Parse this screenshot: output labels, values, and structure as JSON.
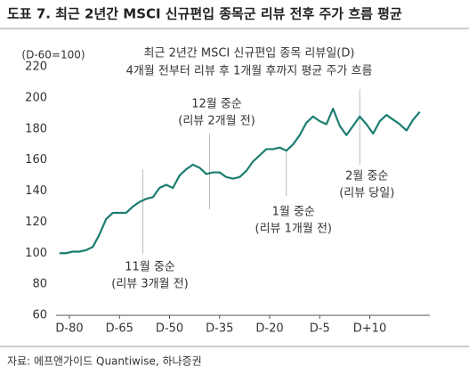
{
  "header": "도표 7. 최근 2년간 MSCI 신규편입 종목군 리뷰 전후 주가 흐름 평균",
  "source": "자료: 에프앤가이드 Quantiwise, 하나증권",
  "chart_data": {
    "type": "line",
    "title": [
      "최근 2년간 MSCI 신규편입 종목 리뷰일(D)",
      "4개월 전부터 리뷰 후 1개월 후까지 평균 주가 흐름"
    ],
    "ylabel": "(D-60=100)",
    "x": [
      -83,
      -81,
      -79,
      -77,
      -75,
      -73,
      -71,
      -69,
      -67,
      -65,
      -63,
      -61,
      -59,
      -57,
      -55,
      -53,
      -51,
      -49,
      -47,
      -45,
      -43,
      -41,
      -39,
      -37,
      -35,
      -33,
      -31,
      -29,
      -27,
      -25,
      -23,
      -21,
      -19,
      -17,
      -15,
      -13,
      -11,
      -9,
      -7,
      -5,
      -3,
      -1,
      1,
      3,
      5,
      7,
      9,
      11,
      13,
      15,
      17,
      19,
      21,
      23,
      25
    ],
    "series": [
      {
        "name": "평균 주가",
        "color": "#1b7d70",
        "values": [
          100,
          100,
          101,
          101,
          102,
          104,
          112,
          122,
          126,
          126,
          126,
          130,
          133,
          135,
          136,
          142,
          144,
          142,
          150,
          154,
          157,
          155,
          151,
          152,
          152,
          149,
          148,
          149,
          153,
          159,
          163,
          167,
          167,
          168,
          166,
          170,
          176,
          184,
          188,
          185,
          183,
          193,
          182,
          176,
          182,
          188,
          183,
          177,
          185,
          189,
          186,
          183,
          179,
          186,
          191
        ]
      }
    ],
    "xlim": [
      -84,
      28
    ],
    "xticks": [
      {
        "value": -80,
        "label": "D-80"
      },
      {
        "value": -65,
        "label": "D-65"
      },
      {
        "value": -50,
        "label": "D-50"
      },
      {
        "value": -35,
        "label": "D-35"
      },
      {
        "value": -20,
        "label": "D-20"
      },
      {
        "value": -5,
        "label": "D-5"
      },
      {
        "value": 10,
        "label": "D+10"
      }
    ],
    "ylim": [
      60,
      220
    ],
    "yticks": [
      60,
      80,
      100,
      120,
      140,
      160,
      180,
      200,
      220
    ],
    "annotations": [
      {
        "x": -58,
        "lines": [
          "11월 중순",
          "(리뷰 3개월 전)"
        ]
      },
      {
        "x": -38,
        "lines": [
          "12월 중순",
          "(리뷰 2개월 전)"
        ]
      },
      {
        "x": -15,
        "lines": [
          "1월 중순",
          "(리뷰 1개월 전)"
        ]
      },
      {
        "x": 7,
        "lines": [
          "2월 중순",
          "(리뷰 당일)"
        ]
      }
    ]
  }
}
